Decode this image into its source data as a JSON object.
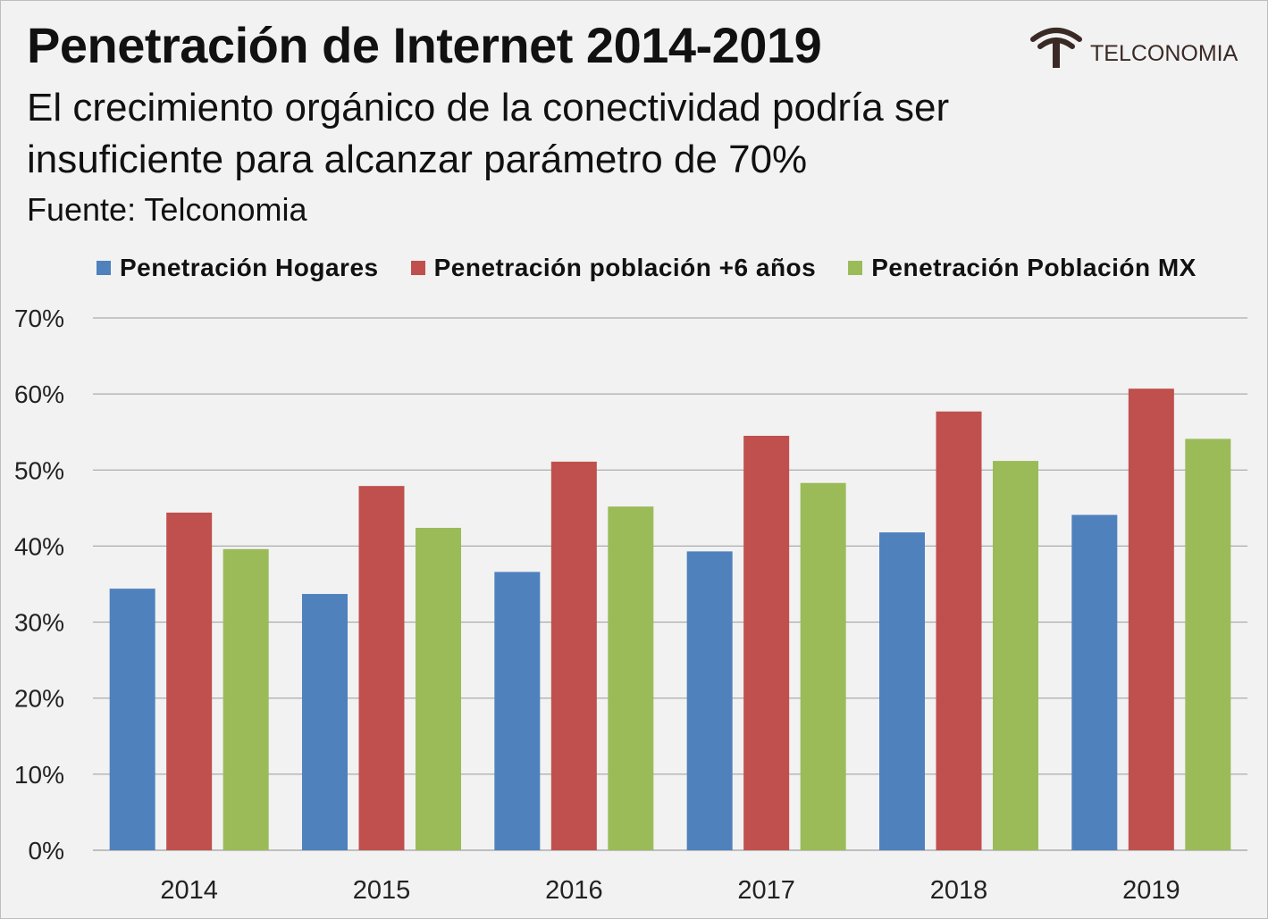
{
  "header": {
    "title": "Penetración de Internet 2014-2019",
    "subtitle": "El crecimiento orgánico de la conectividad podría ser insuficiente para alcanzar parámetro de 70%",
    "source": "Fuente: Telconomia"
  },
  "logo": {
    "text": "TELCONOMIA",
    "icon": "wifi-t-logo-icon",
    "color": "#3a2a26"
  },
  "chart_data": {
    "type": "bar",
    "categories": [
      "2014",
      "2015",
      "2016",
      "2017",
      "2018",
      "2019"
    ],
    "series": [
      {
        "name": "Penetración Hogares",
        "color": "#4f81bd",
        "values": [
          34.4,
          33.7,
          36.6,
          39.3,
          41.8,
          44.1
        ]
      },
      {
        "name": "Penetración población +6 años",
        "color": "#c0504d",
        "values": [
          44.4,
          47.9,
          51.1,
          54.5,
          57.7,
          60.7
        ]
      },
      {
        "name": "Penetración Población MX",
        "color": "#9bbb59",
        "values": [
          39.6,
          42.4,
          45.2,
          48.3,
          51.2,
          54.1
        ]
      }
    ],
    "ylim": [
      0,
      70
    ],
    "yticks": [
      "0%",
      "10%",
      "20%",
      "30%",
      "40%",
      "50%",
      "60%",
      "70%"
    ],
    "legend_position": "top",
    "grid": true
  }
}
